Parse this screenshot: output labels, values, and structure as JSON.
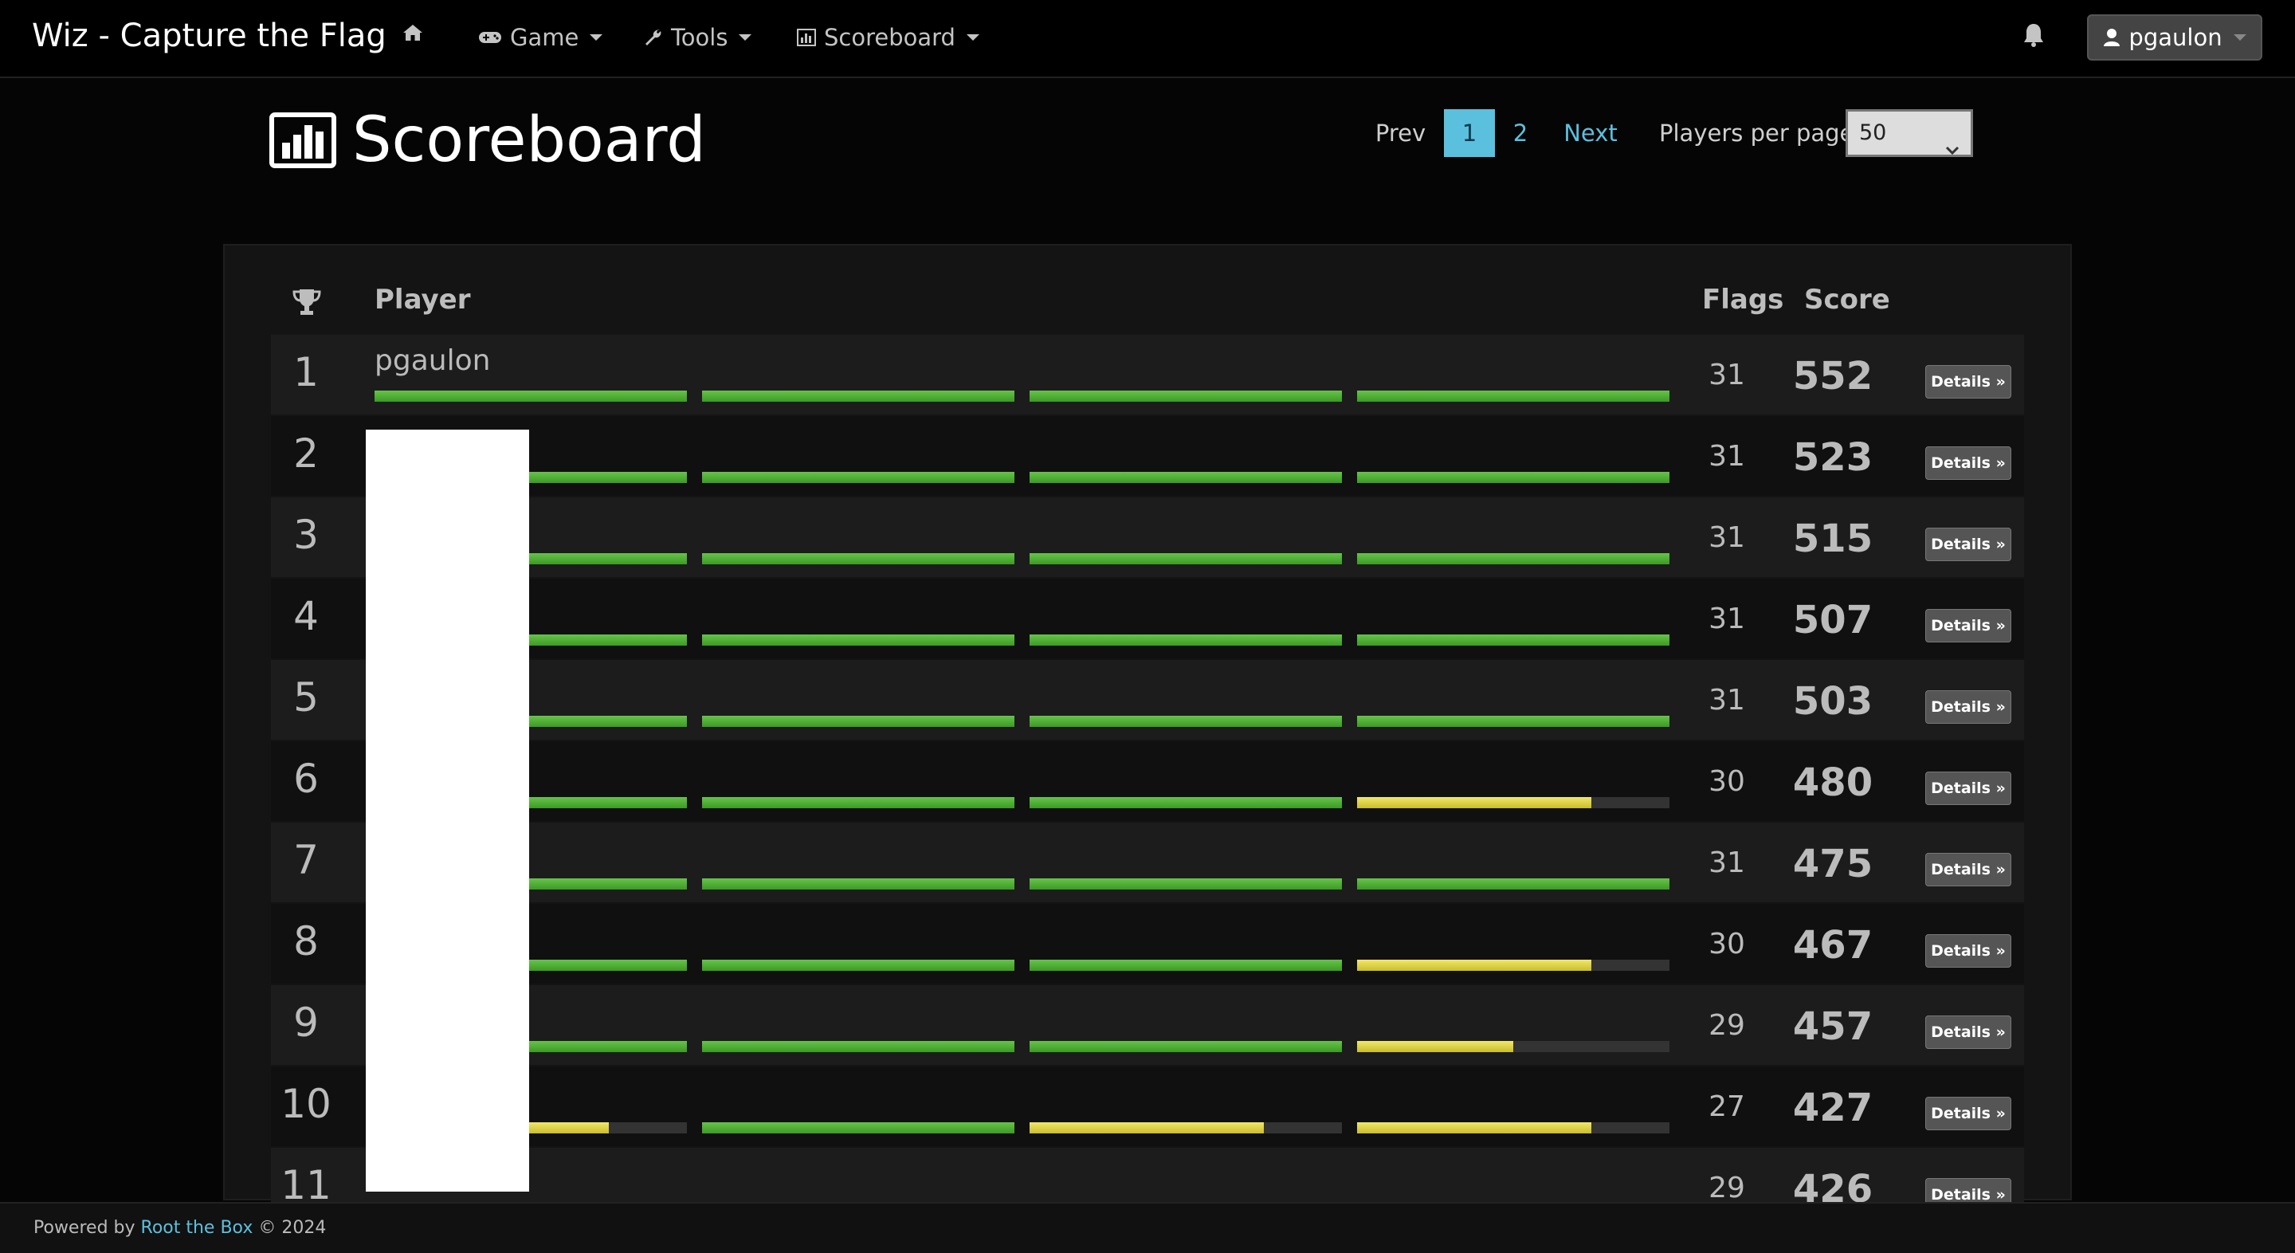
{
  "nav": {
    "brand": "Wiz - Capture the Flag",
    "items": [
      {
        "label": "Game",
        "icon": "gamepad-icon"
      },
      {
        "label": "Tools",
        "icon": "wrench-icon"
      },
      {
        "label": "Scoreboard",
        "icon": "bar-chart-icon"
      }
    ],
    "user": "pgaulon"
  },
  "page": {
    "title": "Scoreboard"
  },
  "pagination": {
    "prev": "Prev",
    "pages": [
      "1",
      "2"
    ],
    "current": "1",
    "next": "Next",
    "per_page_label": "Players per page",
    "per_page_value": "50"
  },
  "table": {
    "headers": {
      "player": "Player",
      "flags": "Flags",
      "score": "Score"
    },
    "details_label": "Details »",
    "rows": [
      {
        "rank": "1",
        "player": "pgaulon",
        "flags": "31",
        "score": "552",
        "progress": [
          1,
          1,
          1,
          1
        ]
      },
      {
        "rank": "2",
        "player": "",
        "flags": "31",
        "score": "523",
        "progress": [
          1,
          1,
          1,
          1
        ]
      },
      {
        "rank": "3",
        "player": "",
        "flags": "31",
        "score": "515",
        "progress": [
          1,
          1,
          1,
          1
        ]
      },
      {
        "rank": "4",
        "player": "",
        "flags": "31",
        "score": "507",
        "progress": [
          1,
          1,
          1,
          1
        ]
      },
      {
        "rank": "5",
        "player": "",
        "flags": "31",
        "score": "503",
        "progress": [
          1,
          1,
          1,
          1
        ]
      },
      {
        "rank": "6",
        "player": "",
        "flags": "30",
        "score": "480",
        "progress": [
          1,
          1,
          1,
          0.75
        ]
      },
      {
        "rank": "7",
        "player": "",
        "flags": "31",
        "score": "475",
        "progress": [
          1,
          1,
          1,
          1
        ]
      },
      {
        "rank": "8",
        "player": "",
        "flags": "30",
        "score": "467",
        "progress": [
          1,
          1,
          1,
          0.75
        ]
      },
      {
        "rank": "9",
        "player": "",
        "flags": "29",
        "score": "457",
        "progress": [
          1,
          1,
          1,
          0.5
        ]
      },
      {
        "rank": "10",
        "player": "",
        "flags": "27",
        "score": "427",
        "progress": [
          0.75,
          1,
          0.75,
          0.75
        ]
      },
      {
        "rank": "11",
        "player": "",
        "flags": "29",
        "score": "426",
        "progress": []
      }
    ]
  },
  "footer": {
    "prefix": "Powered by",
    "link": "Root the Box",
    "suffix": "© 2024"
  },
  "colors": {
    "complete": "#4caf32",
    "partial": "#e0d444",
    "accent": "#5bc0de"
  }
}
